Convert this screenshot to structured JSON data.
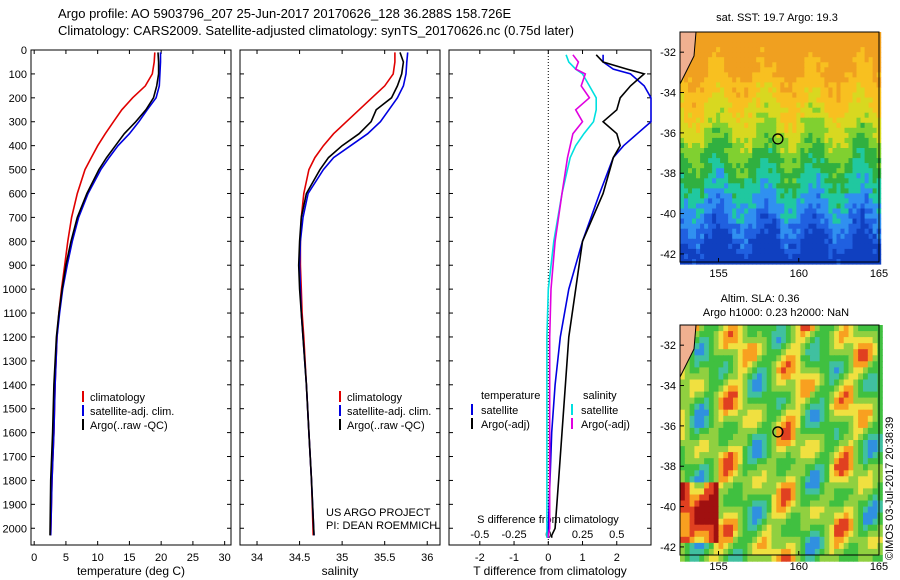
{
  "header": {
    "line1": "Argo profile: AO 5903796_207 25-Jun-2017 20170626_128 36.288S 158.726E",
    "line2": "Climatology: CARS2009. Satellite-adjusted climatology: synTS_20170626.nc (0.75d later)"
  },
  "credits": {
    "project": "US ARGO PROJECT",
    "pi": "PI: DEAN ROEMMICH",
    "stamp": "©IMOS 03-Jul-2017 20:38:39"
  },
  "colors": {
    "climatology": "#e00000",
    "satellite": "#0000e0",
    "argo": "#000000",
    "s_satellite": "#00e0e0",
    "s_argo": "#e000e0"
  },
  "chart_data": [
    {
      "type": "line",
      "xlabel": "temperature (deg C)",
      "ylabel": "",
      "xlim": [
        -0.5,
        31
      ],
      "ylim": [
        2070,
        0
      ],
      "xticks": [
        0,
        5,
        10,
        15,
        20,
        25,
        30
      ],
      "yticks": [
        0,
        100,
        200,
        300,
        400,
        500,
        600,
        700,
        800,
        900,
        1000,
        1100,
        1200,
        1300,
        1400,
        1500,
        1600,
        1700,
        1800,
        1900,
        2000
      ],
      "legend": [
        "climatology",
        "satellite-adj. clim.",
        "Argo(..raw -QC)"
      ],
      "legend_position": "lower-center",
      "series": [
        {
          "name": "climatology",
          "x": [
            19.0,
            18.9,
            18.6,
            17.5,
            15.5,
            13.8,
            12.5,
            11.2,
            10.0,
            9.0,
            8.0,
            6.8,
            5.9,
            5.3,
            4.8,
            4.3,
            3.9,
            3.6,
            3.3,
            3.1,
            2.8,
            2.6
          ],
          "y": [
            10,
            50,
            100,
            150,
            200,
            250,
            300,
            350,
            400,
            450,
            500,
            600,
            700,
            800,
            900,
            1000,
            1100,
            1200,
            1400,
            1600,
            1800,
            2030
          ]
        },
        {
          "name": "satellite-adj. clim.",
          "x": [
            19.9,
            19.9,
            19.8,
            19.7,
            19.2,
            17.8,
            16.5,
            15.0,
            13.2,
            11.8,
            10.5,
            8.5,
            7.0,
            6.0,
            5.2,
            4.5,
            4.0,
            3.6,
            3.3,
            3.1,
            2.8,
            2.6
          ],
          "y": [
            10,
            50,
            100,
            150,
            200,
            250,
            300,
            350,
            400,
            450,
            500,
            600,
            700,
            800,
            900,
            1000,
            1100,
            1200,
            1400,
            1600,
            1800,
            2030
          ]
        },
        {
          "name": "Argo(..raw -QC)",
          "x": [
            19.5,
            19.6,
            19.6,
            19.3,
            18.8,
            17.6,
            16.0,
            14.2,
            12.8,
            11.4,
            10.2,
            8.3,
            6.8,
            5.8,
            5.0,
            4.4,
            3.9,
            3.5,
            3.1,
            2.9,
            2.6,
            2.5
          ],
          "y": [
            10,
            50,
            100,
            150,
            200,
            250,
            300,
            350,
            400,
            450,
            500,
            600,
            700,
            800,
            900,
            1000,
            1100,
            1200,
            1400,
            1600,
            1800,
            2030
          ]
        }
      ]
    },
    {
      "type": "line",
      "xlabel": "salinity",
      "ylabel": "",
      "xlim": [
        33.8,
        36.15
      ],
      "ylim": [
        2070,
        0
      ],
      "xticks": [
        34,
        34.5,
        35,
        35.5,
        36
      ],
      "legend": [
        "climatology",
        "satellite-adj. clim.",
        "Argo(..raw -QC)"
      ],
      "legend_position": "lower-right",
      "series": [
        {
          "name": "climatology",
          "x": [
            35.62,
            35.62,
            35.6,
            35.5,
            35.35,
            35.2,
            35.05,
            34.9,
            34.78,
            34.68,
            34.61,
            34.55,
            34.52,
            34.51,
            34.51,
            34.52,
            34.53,
            34.55,
            34.58,
            34.61,
            34.64,
            34.66
          ],
          "y": [
            10,
            50,
            100,
            150,
            200,
            250,
            300,
            350,
            400,
            450,
            500,
            600,
            700,
            800,
            900,
            1000,
            1100,
            1200,
            1400,
            1600,
            1800,
            2030
          ]
        },
        {
          "name": "satellite-adj. clim.",
          "x": [
            35.77,
            35.76,
            35.75,
            35.72,
            35.65,
            35.55,
            35.45,
            35.3,
            35.1,
            34.9,
            34.78,
            34.6,
            34.54,
            34.51,
            34.5,
            34.51,
            34.52,
            34.54,
            34.58,
            34.61,
            34.64,
            34.67
          ],
          "y": [
            10,
            50,
            100,
            150,
            200,
            250,
            300,
            350,
            400,
            450,
            500,
            600,
            700,
            800,
            900,
            1000,
            1100,
            1200,
            1400,
            1600,
            1800,
            2030
          ]
        },
        {
          "name": "Argo(..raw -QC)",
          "x": [
            35.68,
            35.72,
            35.7,
            35.65,
            35.58,
            35.4,
            35.34,
            35.2,
            35.0,
            34.84,
            34.74,
            34.58,
            34.52,
            34.5,
            34.49,
            34.5,
            34.52,
            34.54,
            34.58,
            34.61,
            34.64,
            34.67
          ],
          "y": [
            10,
            50,
            100,
            150,
            200,
            250,
            300,
            350,
            400,
            450,
            500,
            600,
            700,
            800,
            900,
            1000,
            1100,
            1200,
            1400,
            1600,
            1800,
            2030
          ]
        }
      ]
    },
    {
      "type": "line",
      "xlabel": "T difference from climatology",
      "ylabel": "",
      "xlim": [
        -2.9,
        3.0
      ],
      "ylim": [
        2070,
        0
      ],
      "xticks": [
        -2,
        -1,
        0,
        1,
        2
      ],
      "secondary_xlabel": "S difference from climatology",
      "secondary_xticks": [
        -0.5,
        -0.25,
        0,
        0.25,
        0.5
      ],
      "legend_groups": [
        {
          "title": "temperature",
          "items": [
            "satellite",
            "Argo(-adj)"
          ]
        },
        {
          "title": "salinity",
          "items": [
            "satellite",
            "Argo(-adj)"
          ]
        }
      ],
      "series": [
        {
          "name": "satellite",
          "group": "temperature",
          "x": [
            1.6,
            1.6,
            1.9,
            2.4,
            2.8,
            3.1,
            3.2,
            3.0,
            2.6,
            2.2,
            1.9,
            1.5,
            1.0,
            0.6,
            0.35,
            0.2,
            0.1,
            0.05,
            0.0,
            0.0,
            0.0
          ],
          "y": [
            20,
            50,
            80,
            100,
            150,
            200,
            250,
            300,
            350,
            400,
            450,
            600,
            800,
            1000,
            1200,
            1400,
            1600,
            1800,
            2000,
            2030,
            2040
          ]
        },
        {
          "name": "Argo(-adj)",
          "group": "temperature",
          "x": [
            1.4,
            1.6,
            2.3,
            2.8,
            2.4,
            2.1,
            2.0,
            1.6,
            2.0,
            2.1,
            1.9,
            1.6,
            1.0,
            0.8,
            0.6,
            0.5,
            0.4,
            0.3,
            0.2,
            0.1,
            0.1
          ],
          "y": [
            20,
            50,
            80,
            100,
            150,
            200,
            250,
            300,
            350,
            400,
            450,
            600,
            800,
            1000,
            1200,
            1400,
            1600,
            1800,
            2000,
            2030,
            2040
          ]
        },
        {
          "name": "satellite",
          "group": "salinity",
          "x": [
            0.13,
            0.15,
            0.2,
            0.25,
            0.3,
            0.35,
            0.35,
            0.33,
            0.26,
            0.2,
            0.16,
            0.1,
            0.04,
            0.0,
            -0.01,
            -0.01,
            -0.01,
            -0.01,
            -0.01,
            -0.01,
            -0.01
          ],
          "y": [
            20,
            50,
            80,
            100,
            150,
            200,
            250,
            300,
            350,
            400,
            450,
            600,
            800,
            1000,
            1200,
            1400,
            1600,
            1800,
            2000,
            2030,
            2040
          ]
        },
        {
          "name": "Argo(-adj)",
          "group": "salinity",
          "x": [
            0.18,
            0.22,
            0.2,
            0.27,
            0.24,
            0.3,
            0.2,
            0.25,
            0.18,
            0.16,
            0.14,
            0.1,
            0.05,
            0.02,
            0.01,
            0.01,
            0.01,
            0.01,
            0.01,
            0.0,
            0.0
          ],
          "y": [
            20,
            50,
            80,
            100,
            150,
            200,
            250,
            300,
            350,
            400,
            450,
            600,
            800,
            1000,
            1200,
            1400,
            1600,
            1800,
            2000,
            2030,
            2040
          ]
        }
      ]
    },
    {
      "type": "heatmap",
      "title": "sat. SST: 19.7 Argo: 19.3",
      "xlim": [
        152.6,
        165
      ],
      "ylim": [
        -42.4,
        -31
      ],
      "xticks": [
        155,
        160,
        165
      ],
      "yticks": [
        -32,
        -34,
        -36,
        -38,
        -40,
        -42
      ],
      "marker": {
        "lon": 158.7,
        "lat": -36.3
      }
    },
    {
      "type": "heatmap",
      "title": "Altim. SLA: 0.36",
      "subtitle": "Argo h1000: 0.23 h2000: NaN",
      "xlim": [
        152.6,
        165
      ],
      "ylim": [
        -42.4,
        -31
      ],
      "xticks": [
        155,
        160,
        165
      ],
      "yticks": [
        -32,
        -34,
        -36,
        -38,
        -40,
        -42
      ],
      "marker": {
        "lon": 158.7,
        "lat": -36.3
      }
    }
  ]
}
